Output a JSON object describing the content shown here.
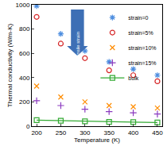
{
  "chart_data": {
    "type": "scatter",
    "x_label": "Temperature (K)",
    "y_label": "Thermal conductivity (W/m-K)",
    "annotation": "Increasing tensile strain",
    "x": [
      200,
      250,
      300,
      350,
      400,
      450
    ],
    "series": [
      {
        "name": "strain=0",
        "color": "#4f8fe0",
        "marker": "asterisk",
        "line_style": "none",
        "values": [
          990,
          760,
          620,
          530,
          470,
          420
        ]
      },
      {
        "name": "strain=5%",
        "color": "#d62728",
        "marker": "circle-open",
        "line_style": "none",
        "values": [
          900,
          680,
          560,
          460,
          420,
          370
        ]
      },
      {
        "name": "strain=10%",
        "color": "#ff8c00",
        "marker": "x",
        "line_style": "none",
        "values": [
          330,
          240,
          200,
          170,
          160,
          150
        ]
      },
      {
        "name": "strain=15%",
        "color": "#8b3bbf",
        "marker": "cross",
        "line_style": "none",
        "values": [
          210,
          170,
          140,
          120,
          110,
          100
        ]
      },
      {
        "name": "bulk",
        "color": "#33aa33",
        "marker": "square-open",
        "line_style": "solid",
        "values": [
          50,
          45,
          40,
          35,
          33,
          30
        ]
      }
    ],
    "xlim": [
      190,
      460
    ],
    "xticks": [
      200,
      250,
      300,
      350,
      400,
      450
    ],
    "ylim": [
      0,
      1000
    ],
    "yticks": [
      0,
      200,
      400,
      600,
      800,
      1000
    ],
    "legend": "upper right",
    "grid": false
  }
}
